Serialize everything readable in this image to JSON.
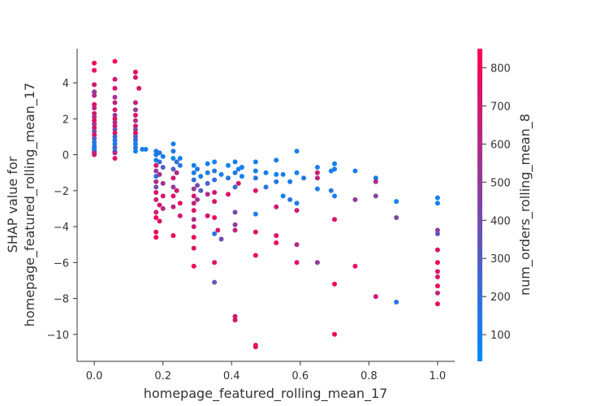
{
  "chart_data": {
    "type": "scatter",
    "xlabel": "homepage_featured_rolling_mean_17",
    "ylabel_lines": [
      "SHAP value for",
      "homepage_featured_rolling_mean_17"
    ],
    "xlim": [
      -0.05,
      1.05
    ],
    "ylim": [
      -11.5,
      5.9
    ],
    "x_ticks": [
      0.0,
      0.2,
      0.4,
      0.6,
      0.8,
      1.0
    ],
    "x_tick_labels": [
      "0.0",
      "0.2",
      "0.4",
      "0.6",
      "0.8",
      "1.0"
    ],
    "y_ticks": [
      4,
      2,
      0,
      -2,
      -4,
      -6,
      -8,
      -10
    ],
    "y_tick_labels": [
      "4",
      "2",
      "0",
      "−2",
      "−4",
      "−6",
      "−8",
      "−10"
    ],
    "colorbar": {
      "label": "num_orders_rolling_mean_8",
      "range": [
        30,
        850
      ],
      "ticks": [
        100,
        200,
        300,
        400,
        500,
        600,
        700,
        800
      ],
      "tick_labels": [
        "100",
        "200",
        "300",
        "400",
        "500",
        "600",
        "700",
        "800"
      ],
      "colormap": [
        "#008bfb",
        "#ff0052"
      ]
    },
    "points": [
      {
        "x": 0.0,
        "y": 5.1,
        "c": 800
      },
      {
        "x": 0.0,
        "y": 4.7,
        "c": 780
      },
      {
        "x": 0.0,
        "y": 3.9,
        "c": 700
      },
      {
        "x": 0.0,
        "y": 3.5,
        "c": 500
      },
      {
        "x": 0.0,
        "y": 3.3,
        "c": 600
      },
      {
        "x": 0.0,
        "y": 2.8,
        "c": 750
      },
      {
        "x": 0.0,
        "y": 2.6,
        "c": 650
      },
      {
        "x": 0.0,
        "y": 2.3,
        "c": 700
      },
      {
        "x": 0.0,
        "y": 2.1,
        "c": 600
      },
      {
        "x": 0.0,
        "y": 1.9,
        "c": 800
      },
      {
        "x": 0.0,
        "y": 1.7,
        "c": 550
      },
      {
        "x": 0.0,
        "y": 1.5,
        "c": 700
      },
      {
        "x": 0.0,
        "y": 1.3,
        "c": 450
      },
      {
        "x": 0.0,
        "y": 1.1,
        "c": 750
      },
      {
        "x": 0.0,
        "y": 0.9,
        "c": 300
      },
      {
        "x": 0.0,
        "y": 0.7,
        "c": 150
      },
      {
        "x": 0.0,
        "y": 0.5,
        "c": 100
      },
      {
        "x": 0.0,
        "y": 0.4,
        "c": 200
      },
      {
        "x": 0.0,
        "y": 0.3,
        "c": 80
      },
      {
        "x": 0.0,
        "y": 0.2,
        "c": 120
      },
      {
        "x": 0.0,
        "y": 0.1,
        "c": 600
      },
      {
        "x": 0.0,
        "y": 0.0,
        "c": 700
      },
      {
        "x": 0.06,
        "y": 5.2,
        "c": 820
      },
      {
        "x": 0.06,
        "y": 4.2,
        "c": 700
      },
      {
        "x": 0.06,
        "y": 3.7,
        "c": 750
      },
      {
        "x": 0.06,
        "y": 3.2,
        "c": 550
      },
      {
        "x": 0.06,
        "y": 2.9,
        "c": 650
      },
      {
        "x": 0.06,
        "y": 2.5,
        "c": 700
      },
      {
        "x": 0.06,
        "y": 2.2,
        "c": 500
      },
      {
        "x": 0.06,
        "y": 2.0,
        "c": 750
      },
      {
        "x": 0.06,
        "y": 1.8,
        "c": 600
      },
      {
        "x": 0.06,
        "y": 1.6,
        "c": 700
      },
      {
        "x": 0.06,
        "y": 1.4,
        "c": 400
      },
      {
        "x": 0.06,
        "y": 1.2,
        "c": 800
      },
      {
        "x": 0.06,
        "y": 1.0,
        "c": 250
      },
      {
        "x": 0.06,
        "y": 0.8,
        "c": 150
      },
      {
        "x": 0.06,
        "y": 0.6,
        "c": 100
      },
      {
        "x": 0.06,
        "y": 0.4,
        "c": 350
      },
      {
        "x": 0.06,
        "y": 0.2,
        "c": 80
      },
      {
        "x": 0.06,
        "y": 0.1,
        "c": 600
      },
      {
        "x": 0.06,
        "y": -0.2,
        "c": 750
      },
      {
        "x": 0.12,
        "y": 4.6,
        "c": 780
      },
      {
        "x": 0.12,
        "y": 4.3,
        "c": 700
      },
      {
        "x": 0.13,
        "y": 3.7,
        "c": 750
      },
      {
        "x": 0.12,
        "y": 2.9,
        "c": 650
      },
      {
        "x": 0.12,
        "y": 2.5,
        "c": 500
      },
      {
        "x": 0.12,
        "y": 2.2,
        "c": 750
      },
      {
        "x": 0.12,
        "y": 1.9,
        "c": 600
      },
      {
        "x": 0.12,
        "y": 1.6,
        "c": 700
      },
      {
        "x": 0.12,
        "y": 1.4,
        "c": 450
      },
      {
        "x": 0.12,
        "y": 1.2,
        "c": 800
      },
      {
        "x": 0.12,
        "y": 1.0,
        "c": 300
      },
      {
        "x": 0.12,
        "y": 0.8,
        "c": 200
      },
      {
        "x": 0.12,
        "y": 0.6,
        "c": 100
      },
      {
        "x": 0.12,
        "y": 0.4,
        "c": 150
      },
      {
        "x": 0.12,
        "y": 0.2,
        "c": 80
      },
      {
        "x": 0.14,
        "y": 0.3,
        "c": 120
      },
      {
        "x": 0.15,
        "y": 0.3,
        "c": 90
      },
      {
        "x": 0.18,
        "y": 0.2,
        "c": 100
      },
      {
        "x": 0.18,
        "y": 0.0,
        "c": 120
      },
      {
        "x": 0.18,
        "y": -0.3,
        "c": 80
      },
      {
        "x": 0.18,
        "y": -0.6,
        "c": 700
      },
      {
        "x": 0.18,
        "y": -0.9,
        "c": 500
      },
      {
        "x": 0.18,
        "y": -1.2,
        "c": 150
      },
      {
        "x": 0.18,
        "y": -1.5,
        "c": 600
      },
      {
        "x": 0.18,
        "y": -1.8,
        "c": 400
      },
      {
        "x": 0.18,
        "y": -2.1,
        "c": 750
      },
      {
        "x": 0.18,
        "y": -2.5,
        "c": 650
      },
      {
        "x": 0.18,
        "y": -3.2,
        "c": 700
      },
      {
        "x": 0.18,
        "y": -3.5,
        "c": 800
      },
      {
        "x": 0.18,
        "y": -4.3,
        "c": 750
      },
      {
        "x": 0.18,
        "y": -4.6,
        "c": 800
      },
      {
        "x": 0.19,
        "y": 0.1,
        "c": 150
      },
      {
        "x": 0.19,
        "y": -0.4,
        "c": 200
      },
      {
        "x": 0.19,
        "y": -1.1,
        "c": 600
      },
      {
        "x": 0.19,
        "y": -2.8,
        "c": 700
      },
      {
        "x": 0.19,
        "y": -3.7,
        "c": 750
      },
      {
        "x": 0.2,
        "y": -0.1,
        "c": 100
      },
      {
        "x": 0.2,
        "y": -0.7,
        "c": 300
      },
      {
        "x": 0.2,
        "y": -1.6,
        "c": 550
      },
      {
        "x": 0.2,
        "y": -2.3,
        "c": 700
      },
      {
        "x": 0.2,
        "y": -3.0,
        "c": 650
      },
      {
        "x": 0.23,
        "y": 0.6,
        "c": 100
      },
      {
        "x": 0.23,
        "y": 0.2,
        "c": 150
      },
      {
        "x": 0.23,
        "y": -0.2,
        "c": 80
      },
      {
        "x": 0.23,
        "y": -0.8,
        "c": 300
      },
      {
        "x": 0.23,
        "y": -1.3,
        "c": 700
      },
      {
        "x": 0.23,
        "y": -1.8,
        "c": 500
      },
      {
        "x": 0.23,
        "y": -2.3,
        "c": 750
      },
      {
        "x": 0.23,
        "y": -2.9,
        "c": 650
      },
      {
        "x": 0.23,
        "y": -4.5,
        "c": 800
      },
      {
        "x": 0.24,
        "y": -0.4,
        "c": 200
      },
      {
        "x": 0.24,
        "y": -1.0,
        "c": 600
      },
      {
        "x": 0.24,
        "y": -2.0,
        "c": 700
      },
      {
        "x": 0.25,
        "y": -0.2,
        "c": 100
      },
      {
        "x": 0.25,
        "y": -0.6,
        "c": 150
      },
      {
        "x": 0.25,
        "y": -2.7,
        "c": 750
      },
      {
        "x": 0.25,
        "y": -3.4,
        "c": 700
      },
      {
        "x": 0.29,
        "y": -0.6,
        "c": 100
      },
      {
        "x": 0.29,
        "y": -1.0,
        "c": 120
      },
      {
        "x": 0.29,
        "y": -1.4,
        "c": 200
      },
      {
        "x": 0.29,
        "y": -1.9,
        "c": 500
      },
      {
        "x": 0.29,
        "y": -2.3,
        "c": 700
      },
      {
        "x": 0.29,
        "y": -2.7,
        "c": 650
      },
      {
        "x": 0.29,
        "y": -3.1,
        "c": 750
      },
      {
        "x": 0.29,
        "y": -3.6,
        "c": 600
      },
      {
        "x": 0.29,
        "y": -4.0,
        "c": 700
      },
      {
        "x": 0.29,
        "y": -4.6,
        "c": 800
      },
      {
        "x": 0.29,
        "y": -5.2,
        "c": 750
      },
      {
        "x": 0.29,
        "y": -6.2,
        "c": 800
      },
      {
        "x": 0.3,
        "y": -0.8,
        "c": 150
      },
      {
        "x": 0.3,
        "y": -1.7,
        "c": 400
      },
      {
        "x": 0.3,
        "y": -2.5,
        "c": 550
      },
      {
        "x": 0.31,
        "y": -1.2,
        "c": 100
      },
      {
        "x": 0.31,
        "y": -2.0,
        "c": 300
      },
      {
        "x": 0.33,
        "y": -0.5,
        "c": 100
      },
      {
        "x": 0.33,
        "y": -1.0,
        "c": 120
      },
      {
        "x": 0.33,
        "y": -1.6,
        "c": 250
      },
      {
        "x": 0.33,
        "y": -2.2,
        "c": 600
      },
      {
        "x": 0.33,
        "y": -3.4,
        "c": 750
      },
      {
        "x": 0.35,
        "y": -0.4,
        "c": 100
      },
      {
        "x": 0.35,
        "y": -0.9,
        "c": 150
      },
      {
        "x": 0.35,
        "y": -1.4,
        "c": 200
      },
      {
        "x": 0.35,
        "y": -2.1,
        "c": 700
      },
      {
        "x": 0.35,
        "y": -2.6,
        "c": 750
      },
      {
        "x": 0.35,
        "y": -3.5,
        "c": 800
      },
      {
        "x": 0.35,
        "y": -4.4,
        "c": 150
      },
      {
        "x": 0.35,
        "y": -6.0,
        "c": 750
      },
      {
        "x": 0.35,
        "y": -7.1,
        "c": 350
      },
      {
        "x": 0.36,
        "y": -4.2,
        "c": 700
      },
      {
        "x": 0.37,
        "y": -1.1,
        "c": 100
      },
      {
        "x": 0.37,
        "y": -4.7,
        "c": 400
      },
      {
        "x": 0.39,
        "y": -0.6,
        "c": 100
      },
      {
        "x": 0.39,
        "y": -1.3,
        "c": 150
      },
      {
        "x": 0.39,
        "y": -2.2,
        "c": 750
      },
      {
        "x": 0.41,
        "y": -0.4,
        "c": 100
      },
      {
        "x": 0.41,
        "y": -1.0,
        "c": 150
      },
      {
        "x": 0.41,
        "y": -1.8,
        "c": 200
      },
      {
        "x": 0.41,
        "y": -3.2,
        "c": 400
      },
      {
        "x": 0.41,
        "y": -3.9,
        "c": 500
      },
      {
        "x": 0.41,
        "y": -4.2,
        "c": 650
      },
      {
        "x": 0.41,
        "y": -9.0,
        "c": 700
      },
      {
        "x": 0.41,
        "y": -9.2,
        "c": 750
      },
      {
        "x": 0.42,
        "y": -0.8,
        "c": 100
      },
      {
        "x": 0.42,
        "y": -1.6,
        "c": 700
      },
      {
        "x": 0.43,
        "y": -0.7,
        "c": 120
      },
      {
        "x": 0.43,
        "y": -1.2,
        "c": 100
      },
      {
        "x": 0.47,
        "y": -0.4,
        "c": 100
      },
      {
        "x": 0.47,
        "y": -0.9,
        "c": 100
      },
      {
        "x": 0.47,
        "y": -1.3,
        "c": 150
      },
      {
        "x": 0.47,
        "y": -2.0,
        "c": 750
      },
      {
        "x": 0.47,
        "y": -3.3,
        "c": 100
      },
      {
        "x": 0.47,
        "y": -4.3,
        "c": 750
      },
      {
        "x": 0.47,
        "y": -5.6,
        "c": 800
      },
      {
        "x": 0.47,
        "y": -10.6,
        "c": 800
      },
      {
        "x": 0.47,
        "y": -10.7,
        "c": 750
      },
      {
        "x": 0.5,
        "y": -1.0,
        "c": 100
      },
      {
        "x": 0.5,
        "y": -1.8,
        "c": 150
      },
      {
        "x": 0.53,
        "y": -0.3,
        "c": 100
      },
      {
        "x": 0.53,
        "y": -1.1,
        "c": 100
      },
      {
        "x": 0.53,
        "y": -1.5,
        "c": 150
      },
      {
        "x": 0.53,
        "y": -2.9,
        "c": 700
      },
      {
        "x": 0.53,
        "y": -4.5,
        "c": 750
      },
      {
        "x": 0.53,
        "y": -4.9,
        "c": 800
      },
      {
        "x": 0.55,
        "y": -2.3,
        "c": 100
      },
      {
        "x": 0.55,
        "y": -1.1,
        "c": 120
      },
      {
        "x": 0.57,
        "y": -1.5,
        "c": 100
      },
      {
        "x": 0.57,
        "y": -2.5,
        "c": 150
      },
      {
        "x": 0.59,
        "y": 0.2,
        "c": 100
      },
      {
        "x": 0.59,
        "y": -1.0,
        "c": 100
      },
      {
        "x": 0.59,
        "y": -2.7,
        "c": 100
      },
      {
        "x": 0.59,
        "y": -3.1,
        "c": 700
      },
      {
        "x": 0.59,
        "y": -5.0,
        "c": 600
      },
      {
        "x": 0.59,
        "y": -6.0,
        "c": 750
      },
      {
        "x": 0.61,
        "y": -1.3,
        "c": 150
      },
      {
        "x": 0.65,
        "y": -0.7,
        "c": 100
      },
      {
        "x": 0.65,
        "y": -1.0,
        "c": 700
      },
      {
        "x": 0.65,
        "y": -1.3,
        "c": 650
      },
      {
        "x": 0.65,
        "y": -1.9,
        "c": 120
      },
      {
        "x": 0.65,
        "y": -6.0,
        "c": 500
      },
      {
        "x": 0.69,
        "y": -0.9,
        "c": 100
      },
      {
        "x": 0.69,
        "y": -2.0,
        "c": 150
      },
      {
        "x": 0.7,
        "y": -0.5,
        "c": 100
      },
      {
        "x": 0.7,
        "y": -0.8,
        "c": 120
      },
      {
        "x": 0.7,
        "y": -2.3,
        "c": 100
      },
      {
        "x": 0.7,
        "y": -3.6,
        "c": 750
      },
      {
        "x": 0.7,
        "y": -7.2,
        "c": 800
      },
      {
        "x": 0.7,
        "y": -10.0,
        "c": 800
      },
      {
        "x": 0.76,
        "y": -0.9,
        "c": 100
      },
      {
        "x": 0.76,
        "y": -2.5,
        "c": 500
      },
      {
        "x": 0.76,
        "y": -6.2,
        "c": 750
      },
      {
        "x": 0.82,
        "y": -1.3,
        "c": 100
      },
      {
        "x": 0.82,
        "y": -1.5,
        "c": 600
      },
      {
        "x": 0.82,
        "y": -2.3,
        "c": 450
      },
      {
        "x": 0.82,
        "y": -7.9,
        "c": 700
      },
      {
        "x": 0.88,
        "y": -2.6,
        "c": 100
      },
      {
        "x": 0.88,
        "y": -3.5,
        "c": 450
      },
      {
        "x": 0.88,
        "y": -8.2,
        "c": 150
      },
      {
        "x": 1.0,
        "y": -2.4,
        "c": 100
      },
      {
        "x": 1.0,
        "y": -2.7,
        "c": 100
      },
      {
        "x": 1.0,
        "y": -4.2,
        "c": 500
      },
      {
        "x": 1.0,
        "y": -4.4,
        "c": 350
      },
      {
        "x": 1.0,
        "y": -5.3,
        "c": 750
      },
      {
        "x": 1.0,
        "y": -6.0,
        "c": 800
      },
      {
        "x": 1.0,
        "y": -6.5,
        "c": 700
      },
      {
        "x": 1.0,
        "y": -6.8,
        "c": 750
      },
      {
        "x": 1.0,
        "y": -7.3,
        "c": 800
      },
      {
        "x": 1.0,
        "y": -7.7,
        "c": 650
      },
      {
        "x": 1.0,
        "y": -8.3,
        "c": 800
      }
    ]
  }
}
